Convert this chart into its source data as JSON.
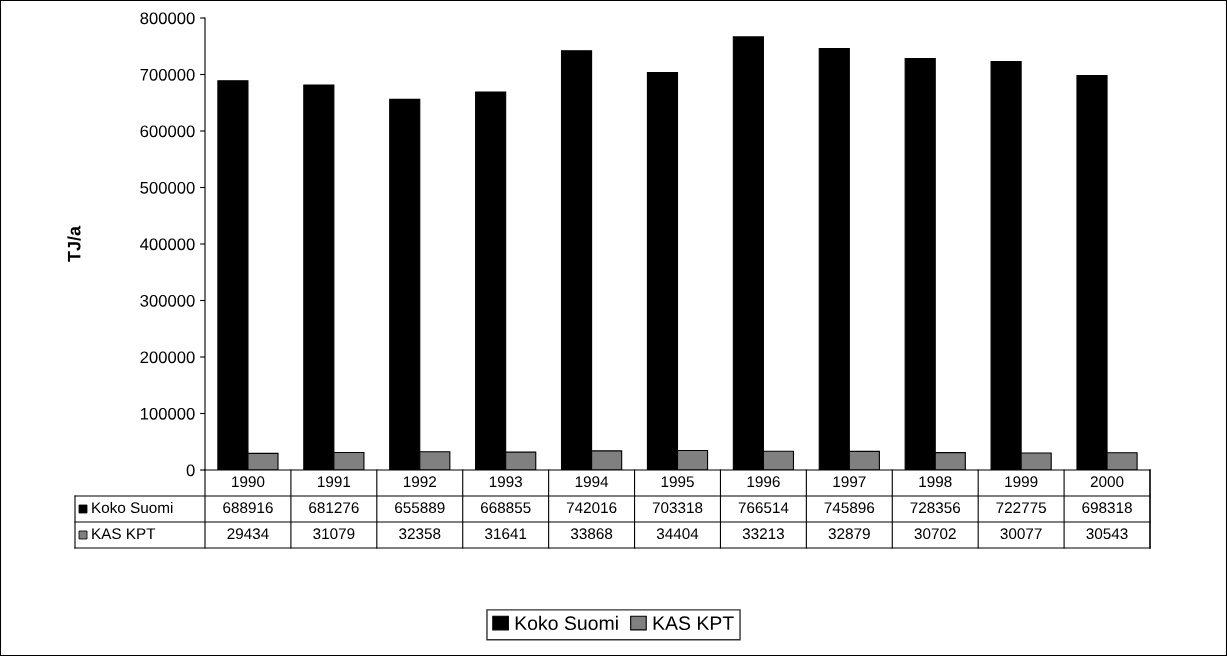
{
  "chart_data": {
    "type": "bar",
    "ylabel": "TJ/a",
    "categories": [
      "1990",
      "1991",
      "1992",
      "1993",
      "1994",
      "1995",
      "1996",
      "1997",
      "1998",
      "1999",
      "2000"
    ],
    "series": [
      {
        "name": "Koko Suomi",
        "color": "#000000",
        "values": [
          688916,
          681276,
          655889,
          668855,
          742016,
          703318,
          766514,
          745896,
          728356,
          722775,
          698318
        ]
      },
      {
        "name": "KAS KPT",
        "color": "#808080",
        "values": [
          29434,
          31079,
          32358,
          31641,
          33868,
          34404,
          33213,
          32879,
          30702,
          30077,
          30543
        ]
      }
    ],
    "ylim": [
      0,
      800000
    ],
    "yticks": [
      0,
      100000,
      200000,
      300000,
      400000,
      500000,
      600000,
      700000,
      800000
    ],
    "data_labels": true,
    "legend": "bottom",
    "grid": false
  }
}
